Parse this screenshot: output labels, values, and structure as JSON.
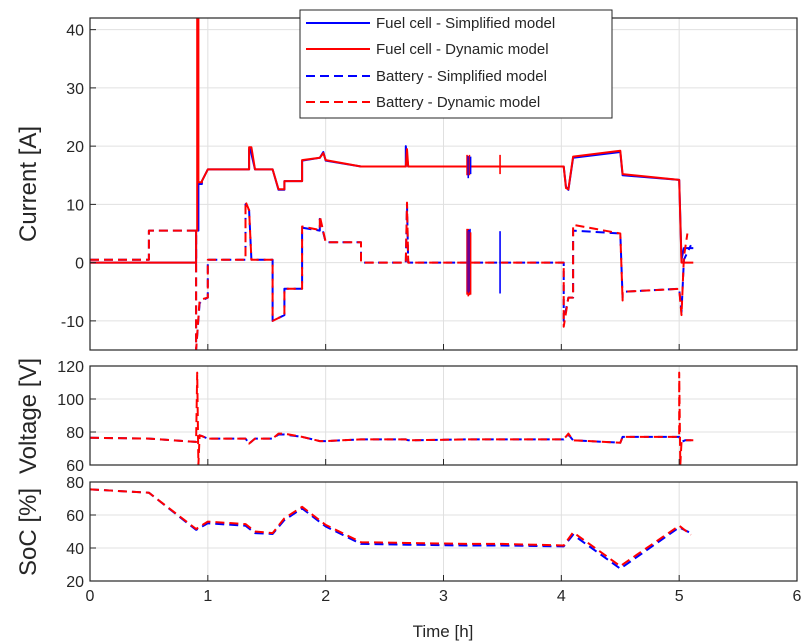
{
  "colors": {
    "simplified": "#0000ff",
    "dynamic": "#ff0000",
    "axis": "#262626",
    "grid": "#e0e0e0"
  },
  "chart_data": [
    {
      "type": "line",
      "ylabel": "Current [A]",
      "ylim": [
        -15,
        42
      ],
      "yticks": [
        -10,
        0,
        10,
        20,
        30,
        40
      ],
      "xlim": [
        0,
        6
      ],
      "grid": true,
      "legend_position": "top-center",
      "series": [
        {
          "name": "Fuel cell - Simplified model",
          "style": "solid",
          "color": "#0000ff",
          "x": [
            0,
            0.9,
            0.9,
            0.92,
            0.92,
            0.95,
            0.95,
            1.0,
            1.35,
            1.35,
            1.36,
            1.4,
            1.55,
            1.6,
            1.65,
            1.65,
            1.8,
            1.8,
            1.95,
            1.98,
            2.0,
            2.3,
            2.68,
            2.68,
            2.7,
            3.2,
            3.25,
            3.48,
            3.5,
            4.02,
            4.04,
            4.06,
            4.1,
            4.5,
            4.52,
            5.0,
            5.02,
            5.04,
            5.1,
            5.12
          ],
          "y": [
            0,
            0,
            5.5,
            5.5,
            13.5,
            13.5,
            14,
            16,
            16,
            19.5,
            19.5,
            16,
            16,
            12.5,
            12.5,
            14,
            14,
            17.5,
            18,
            19,
            17.5,
            16.5,
            16.5,
            20,
            16.5,
            16.5,
            16.5,
            16.5,
            16.5,
            16.5,
            13,
            12.5,
            18,
            19,
            15,
            14.2,
            0.5,
            2.5,
            2.5,
            2.5
          ]
        },
        {
          "name": "Fuel cell - Dynamic model",
          "style": "solid",
          "color": "#ff0000",
          "x": [
            0,
            0.9,
            0.9,
            0.91,
            0.91,
            0.92,
            0.92,
            0.95,
            0.95,
            1.0,
            1.35,
            1.35,
            1.37,
            1.4,
            1.55,
            1.6,
            1.65,
            1.65,
            1.8,
            1.8,
            1.95,
            1.98,
            2.0,
            2.3,
            2.68,
            2.69,
            2.7,
            3.2,
            3.48,
            3.5,
            4.02,
            4.04,
            4.06,
            4.1,
            4.5,
            4.52,
            5.0,
            5.02,
            5.04,
            5.12
          ],
          "y": [
            0,
            0,
            5.5,
            5.5,
            42,
            42,
            13.8,
            13.8,
            14,
            16,
            16,
            19.8,
            19.8,
            16,
            16,
            12.6,
            12.6,
            14,
            14,
            17.6,
            18,
            18.8,
            17.6,
            16.5,
            16.5,
            19.5,
            16.5,
            16.5,
            16.5,
            16.5,
            16.5,
            12.8,
            12.6,
            18.2,
            19.2,
            15.2,
            14.2,
            0,
            0,
            0
          ]
        },
        {
          "name": "Battery - Simplified model",
          "style": "dashed",
          "color": "#0000ff",
          "x": [
            0,
            0.5,
            0.5,
            0.9,
            0.9,
            0.93,
            0.95,
            1.0,
            1.0,
            1.32,
            1.32,
            1.35,
            1.37,
            1.4,
            1.55,
            1.55,
            1.6,
            1.65,
            1.65,
            1.8,
            1.8,
            1.95,
            1.95,
            2.0,
            2.3,
            2.3,
            2.68,
            2.69,
            2.7,
            3.2,
            3.48,
            3.5,
            4.02,
            4.02,
            4.06,
            4.1,
            4.1,
            4.5,
            4.52,
            4.52,
            5.0,
            5.02,
            5.04,
            5.1
          ],
          "y": [
            0.5,
            0.5,
            5.5,
            5.5,
            -15,
            -7,
            -6.5,
            -6,
            0.5,
            0.5,
            10,
            9,
            0.5,
            0.5,
            0.5,
            -10,
            -9.5,
            -9,
            -4.5,
            -4.5,
            6,
            5.5,
            7.5,
            3.5,
            3.5,
            0,
            0,
            10,
            0,
            0,
            0,
            0,
            0,
            -10,
            -6,
            -6,
            5.5,
            5,
            -6,
            -5,
            -4.5,
            -8.5,
            0.5,
            3
          ]
        },
        {
          "name": "Battery - Dynamic model",
          "style": "dashed",
          "color": "#ff0000",
          "x": [
            0,
            0.5,
            0.5,
            0.9,
            0.9,
            0.93,
            0.95,
            1.0,
            1.0,
            1.32,
            1.32,
            1.35,
            1.37,
            1.4,
            1.55,
            1.55,
            1.6,
            1.65,
            1.65,
            1.8,
            1.8,
            1.95,
            1.95,
            2.0,
            2.3,
            2.3,
            2.68,
            2.69,
            2.7,
            3.2,
            3.48,
            3.5,
            4.02,
            4.02,
            4.06,
            4.1,
            4.1,
            4.5,
            4.52,
            4.52,
            5.0,
            5.02,
            5.04,
            5.07
          ],
          "y": [
            0.5,
            0.5,
            5.5,
            5.5,
            -15,
            -6.5,
            -6.3,
            -6,
            0.5,
            0.5,
            10.5,
            9,
            0.5,
            0.5,
            0.5,
            -10,
            -9.5,
            -9,
            -4.5,
            -4.5,
            6.2,
            5.6,
            8,
            3.5,
            3.5,
            0,
            0,
            10.3,
            0,
            0,
            0,
            0,
            0,
            -11,
            -6,
            -6,
            6.5,
            5,
            -6.5,
            -5,
            -4.5,
            -9,
            1,
            5
          ]
        }
      ],
      "spikes": [
        {
          "x": 3.2,
          "ymin": -5.5,
          "ymax": 5.8
        },
        {
          "x": 3.205,
          "ymin": -5,
          "ymax": 5.5
        },
        {
          "x": 3.21,
          "ymin": -5.8,
          "ymax": 5.8
        },
        {
          "x": 3.215,
          "ymin": -5.2,
          "ymax": 5.6
        },
        {
          "x": 3.22,
          "ymin": -5.6,
          "ymax": 5.4
        },
        {
          "x": 3.225,
          "ymin": -5,
          "ymax": 5.8
        },
        {
          "x": 3.23,
          "ymin": -5.5,
          "ymax": 5.2
        },
        {
          "x": 3.48,
          "ymin": -5.3,
          "ymax": 5.4
        },
        {
          "x": 3.2,
          "ymin": 15,
          "ymax": 18.5
        },
        {
          "x": 3.21,
          "ymin": 14.5,
          "ymax": 18.3
        },
        {
          "x": 3.22,
          "ymin": 15,
          "ymax": 18.5
        },
        {
          "x": 3.23,
          "ymin": 15.2,
          "ymax": 18.2
        },
        {
          "x": 3.48,
          "ymin": 15.2,
          "ymax": 18.5
        }
      ]
    },
    {
      "type": "line",
      "ylabel": "Voltage [V]",
      "ylim": [
        60,
        120
      ],
      "yticks": [
        60,
        80,
        100,
        120
      ],
      "xlim": [
        0,
        6
      ],
      "grid": true,
      "series": [
        {
          "name": "Battery - Simplified model",
          "style": "dashed",
          "color": "#0000ff",
          "x": [
            0,
            0.5,
            0.9,
            0.93,
            0.95,
            1.0,
            1.32,
            1.35,
            1.4,
            1.55,
            1.6,
            1.65,
            1.8,
            1.95,
            2.0,
            2.3,
            2.68,
            2.7,
            3.2,
            3.5,
            4.02,
            4.06,
            4.1,
            4.5,
            4.52,
            5.0,
            5.02,
            5.05,
            5.12
          ],
          "y": [
            76.5,
            76,
            74,
            78,
            77.5,
            76,
            76,
            73,
            76,
            76,
            78.5,
            78.5,
            77,
            74.5,
            74.5,
            75.5,
            75.5,
            75,
            75.5,
            75.5,
            75.5,
            78.5,
            75,
            73.5,
            77,
            77,
            74,
            75,
            75
          ]
        },
        {
          "name": "Battery - Dynamic model",
          "style": "dashed",
          "color": "#ff0000",
          "x": [
            0,
            0.5,
            0.9,
            0.91,
            0.92,
            0.93,
            0.95,
            1.0,
            1.32,
            1.35,
            1.4,
            1.55,
            1.6,
            1.65,
            1.8,
            1.95,
            2.0,
            2.3,
            2.68,
            2.7,
            3.2,
            3.5,
            4.02,
            4.06,
            4.1,
            4.5,
            4.52,
            5.0,
            5.0,
            5.01,
            5.02,
            5.05,
            5.12
          ],
          "y": [
            76.5,
            76,
            74,
            116,
            60,
            78,
            77.5,
            76,
            76,
            73,
            76,
            76,
            79,
            79,
            77,
            74.5,
            74.5,
            75.5,
            75.5,
            75,
            75.5,
            75.5,
            75.5,
            79,
            75,
            73.5,
            77,
            77,
            116,
            60,
            74,
            75,
            75
          ]
        }
      ]
    },
    {
      "type": "line",
      "ylabel": "SoC [%]",
      "xlabel": "Time [h]",
      "ylim": [
        20,
        80
      ],
      "yticks": [
        20,
        40,
        60,
        80
      ],
      "xlim": [
        0,
        6
      ],
      "xticks": [
        0,
        1,
        2,
        3,
        4,
        5,
        6
      ],
      "grid": true,
      "series": [
        {
          "name": "Battery - Simplified model",
          "style": "dashed",
          "color": "#0000ff",
          "x": [
            0,
            0.5,
            0.9,
            1.0,
            1.32,
            1.4,
            1.55,
            1.65,
            1.8,
            2.0,
            2.3,
            2.7,
            3.2,
            3.5,
            4.02,
            4.1,
            4.5,
            5.0,
            5.1
          ],
          "y": [
            75.5,
            73.5,
            51,
            55,
            53.5,
            49,
            48.5,
            57,
            64,
            53,
            42.5,
            42,
            41.5,
            41.5,
            41,
            48,
            27.5,
            52.5,
            49
          ]
        },
        {
          "name": "Battery - Dynamic model",
          "style": "dashed",
          "color": "#ff0000",
          "x": [
            0,
            0.5,
            0.9,
            1.0,
            1.32,
            1.4,
            1.55,
            1.65,
            1.8,
            2.0,
            2.3,
            2.7,
            3.2,
            3.5,
            4.02,
            4.1,
            4.5,
            5.0,
            5.1
          ],
          "y": [
            75.5,
            73.5,
            51.5,
            56,
            54.5,
            50,
            49,
            58,
            65,
            54,
            43.5,
            43,
            42.5,
            42.5,
            41.5,
            49.5,
            29,
            53.5,
            48
          ]
        }
      ]
    }
  ]
}
